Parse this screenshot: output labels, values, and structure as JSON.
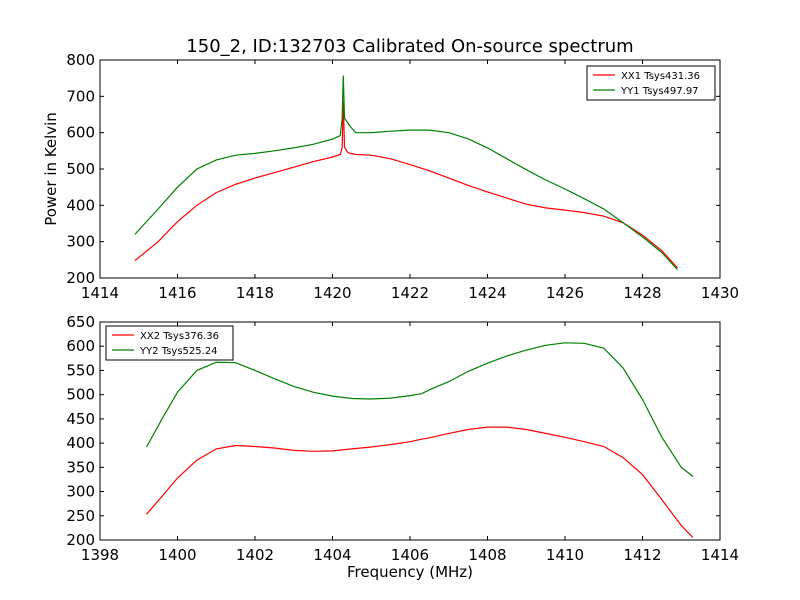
{
  "figure": {
    "title": "150_2, ID:132703 Calibrated On-source spectrum"
  },
  "chart_data": [
    {
      "type": "line",
      "title": "150_2, ID:132703 Calibrated On-source spectrum",
      "xlabel": "",
      "ylabel": "Power in Kelvin",
      "xlim": [
        1414,
        1430
      ],
      "ylim": [
        200,
        800
      ],
      "xticks": [
        "1414",
        "1416",
        "1418",
        "1420",
        "1422",
        "1424",
        "1426",
        "1428",
        "1430"
      ],
      "yticks": [
        "200",
        "300",
        "400",
        "500",
        "600",
        "700",
        "800"
      ],
      "legend": "top-right",
      "grid": false,
      "series": [
        {
          "name": "XX1 Tsys431.36",
          "color": "#ff0000",
          "points": [
            [
              1414.9,
              248
            ],
            [
              1415.5,
              300
            ],
            [
              1416.0,
              355
            ],
            [
              1416.5,
              400
            ],
            [
              1417.0,
              435
            ],
            [
              1417.5,
              458
            ],
            [
              1418.0,
              475
            ],
            [
              1418.5,
              490
            ],
            [
              1419.0,
              505
            ],
            [
              1419.5,
              520
            ],
            [
              1420.0,
              533
            ],
            [
              1420.2,
              540
            ],
            [
              1420.25,
              560
            ],
            [
              1420.28,
              685
            ],
            [
              1420.31,
              560
            ],
            [
              1420.4,
              545
            ],
            [
              1420.6,
              540
            ],
            [
              1421.0,
              538
            ],
            [
              1421.5,
              528
            ],
            [
              1422.0,
              512
            ],
            [
              1422.5,
              495
            ],
            [
              1423.0,
              475
            ],
            [
              1423.5,
              455
            ],
            [
              1424.0,
              437
            ],
            [
              1424.5,
              420
            ],
            [
              1425.0,
              403
            ],
            [
              1425.5,
              393
            ],
            [
              1426.0,
              387
            ],
            [
              1426.5,
              380
            ],
            [
              1427.0,
              370
            ],
            [
              1427.5,
              352
            ],
            [
              1428.0,
              318
            ],
            [
              1428.5,
              275
            ],
            [
              1428.9,
              228
            ]
          ]
        },
        {
          "name": "YY1 Tsys497.97",
          "color": "#008000",
          "points": [
            [
              1414.9,
              320
            ],
            [
              1415.5,
              390
            ],
            [
              1416.0,
              450
            ],
            [
              1416.5,
              500
            ],
            [
              1417.0,
              525
            ],
            [
              1417.5,
              538
            ],
            [
              1418.0,
              543
            ],
            [
              1418.5,
              550
            ],
            [
              1419.0,
              558
            ],
            [
              1419.5,
              568
            ],
            [
              1420.0,
              582
            ],
            [
              1420.2,
              592
            ],
            [
              1420.25,
              640
            ],
            [
              1420.28,
              757
            ],
            [
              1420.31,
              640
            ],
            [
              1420.45,
              618
            ],
            [
              1420.6,
              600
            ],
            [
              1421.0,
              600
            ],
            [
              1421.5,
              604
            ],
            [
              1422.0,
              607
            ],
            [
              1422.5,
              607
            ],
            [
              1423.0,
              600
            ],
            [
              1423.5,
              583
            ],
            [
              1424.0,
              558
            ],
            [
              1424.5,
              528
            ],
            [
              1425.0,
              498
            ],
            [
              1425.5,
              470
            ],
            [
              1426.0,
              445
            ],
            [
              1426.5,
              418
            ],
            [
              1427.0,
              390
            ],
            [
              1427.5,
              352
            ],
            [
              1428.0,
              313
            ],
            [
              1428.5,
              270
            ],
            [
              1428.9,
              223
            ]
          ]
        }
      ]
    },
    {
      "type": "line",
      "title": "",
      "xlabel": "Frequency (MHz)",
      "ylabel": "",
      "xlim": [
        1398,
        1414
      ],
      "ylim": [
        200,
        650
      ],
      "xticks": [
        "1398",
        "1400",
        "1402",
        "1404",
        "1406",
        "1408",
        "1410",
        "1412",
        "1414"
      ],
      "yticks": [
        "200",
        "250",
        "300",
        "350",
        "400",
        "450",
        "500",
        "550",
        "600",
        "650"
      ],
      "legend": "top-left",
      "grid": false,
      "series": [
        {
          "name": "XX2 Tsys376.36",
          "color": "#ff0000",
          "points": [
            [
              1399.2,
              253
            ],
            [
              1399.6,
              290
            ],
            [
              1400.0,
              328
            ],
            [
              1400.5,
              365
            ],
            [
              1401.0,
              388
            ],
            [
              1401.5,
              395
            ],
            [
              1402.0,
              393
            ],
            [
              1402.5,
              390
            ],
            [
              1403.0,
              385
            ],
            [
              1403.5,
              383
            ],
            [
              1404.0,
              384
            ],
            [
              1404.5,
              388
            ],
            [
              1405.0,
              392
            ],
            [
              1405.5,
              397
            ],
            [
              1406.0,
              403
            ],
            [
              1406.3,
              408
            ],
            [
              1406.5,
              411
            ],
            [
              1407.0,
              420
            ],
            [
              1407.5,
              428
            ],
            [
              1408.0,
              433
            ],
            [
              1408.5,
              433
            ],
            [
              1409.0,
              428
            ],
            [
              1409.5,
              420
            ],
            [
              1410.0,
              412
            ],
            [
              1410.5,
              403
            ],
            [
              1411.0,
              393
            ],
            [
              1411.5,
              370
            ],
            [
              1412.0,
              335
            ],
            [
              1412.5,
              283
            ],
            [
              1413.0,
              230
            ],
            [
              1413.3,
              205
            ]
          ]
        },
        {
          "name": "YY2 Tsys525.24",
          "color": "#008000",
          "points": [
            [
              1399.2,
              392
            ],
            [
              1399.6,
              450
            ],
            [
              1400.0,
              505
            ],
            [
              1400.5,
              550
            ],
            [
              1401.0,
              567
            ],
            [
              1401.5,
              566
            ],
            [
              1402.0,
              550
            ],
            [
              1402.5,
              533
            ],
            [
              1403.0,
              517
            ],
            [
              1403.5,
              505
            ],
            [
              1404.0,
              497
            ],
            [
              1404.5,
              492
            ],
            [
              1405.0,
              491
            ],
            [
              1405.5,
              493
            ],
            [
              1406.0,
              498
            ],
            [
              1406.3,
              502
            ],
            [
              1406.5,
              510
            ],
            [
              1407.0,
              527
            ],
            [
              1407.5,
              548
            ],
            [
              1408.0,
              565
            ],
            [
              1408.5,
              580
            ],
            [
              1409.0,
              592
            ],
            [
              1409.5,
              602
            ],
            [
              1410.0,
              607
            ],
            [
              1410.5,
              606
            ],
            [
              1411.0,
              596
            ],
            [
              1411.5,
              555
            ],
            [
              1412.0,
              490
            ],
            [
              1412.5,
              412
            ],
            [
              1413.0,
              350
            ],
            [
              1413.3,
              331
            ]
          ]
        }
      ]
    }
  ]
}
